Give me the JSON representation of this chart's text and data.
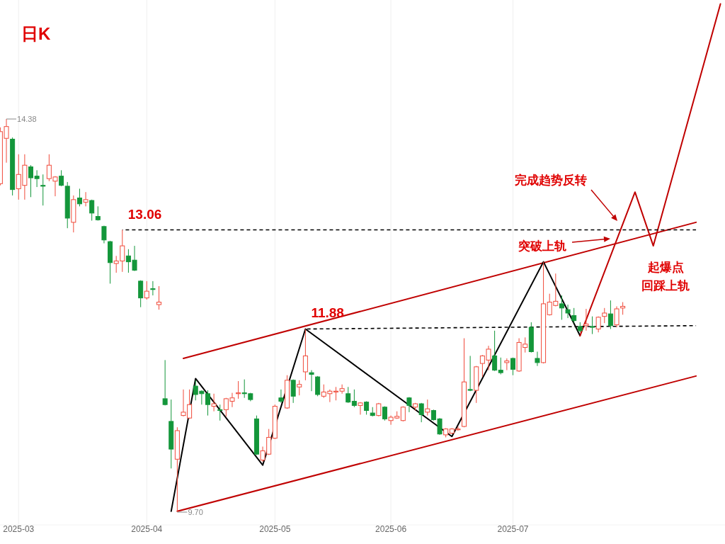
{
  "chart_data": {
    "type": "candlestick",
    "title": "日K",
    "categories": [
      null,
      null,
      null,
      "2025-03",
      null,
      null,
      null,
      null,
      null,
      null,
      null,
      null,
      null,
      null,
      null,
      null,
      null,
      null,
      null,
      null,
      null,
      null,
      null,
      null,
      "2025-04",
      null,
      null,
      null,
      null,
      null,
      null,
      null,
      null,
      null,
      null,
      null,
      null,
      null,
      null,
      null,
      null,
      null,
      null,
      null,
      null,
      "2025-05",
      null,
      null,
      null,
      null,
      null,
      null,
      null,
      null,
      null,
      null,
      null,
      null,
      null,
      null,
      null,
      null,
      null,
      null,
      "2025-06",
      null,
      null,
      null,
      null,
      null,
      null,
      null,
      null,
      null,
      null,
      null,
      null,
      null,
      null,
      null,
      null,
      null,
      null,
      null,
      "2025-07",
      null,
      null,
      null,
      null,
      null,
      null,
      null,
      null,
      null,
      null,
      null,
      null,
      null,
      null,
      null,
      null,
      null,
      null,
      null,
      null,
      null,
      null,
      null,
      null,
      null,
      null,
      null,
      null,
      null,
      null,
      null,
      null,
      null,
      null
    ],
    "ohlc": [
      [
        13.61,
        14.28,
        13.59,
        14.23
      ],
      [
        14.15,
        14.38,
        13.86,
        14.29
      ],
      [
        14.14,
        14.16,
        13.47,
        13.54
      ],
      [
        13.55,
        13.96,
        13.42,
        13.72
      ],
      [
        13.59,
        13.96,
        13.42,
        13.83
      ],
      [
        13.81,
        13.83,
        13.45,
        13.68
      ],
      [
        13.7,
        13.77,
        13.57,
        13.67
      ],
      [
        13.59,
        13.72,
        13.35,
        13.58
      ],
      [
        13.67,
        13.96,
        13.64,
        13.83
      ],
      [
        13.64,
        13.7,
        13.46,
        13.69
      ],
      [
        13.7,
        13.77,
        13.58,
        13.59
      ],
      [
        13.58,
        13.63,
        13.08,
        13.2
      ],
      [
        13.15,
        13.47,
        13.03,
        13.42
      ],
      [
        13.44,
        13.55,
        13.34,
        13.37
      ],
      [
        13.39,
        13.51,
        13.34,
        13.42
      ],
      [
        13.41,
        13.42,
        13.17,
        13.26
      ],
      [
        13.22,
        13.34,
        13.17,
        13.18
      ],
      [
        13.1,
        13.11,
        12.9,
        12.94
      ],
      [
        12.92,
        12.93,
        12.42,
        12.67
      ],
      [
        12.66,
        12.75,
        12.55,
        12.69
      ],
      [
        12.69,
        13.06,
        12.56,
        12.87
      ],
      [
        12.75,
        12.83,
        12.55,
        12.68
      ],
      [
        12.7,
        12.87,
        12.57,
        12.58
      ],
      [
        12.45,
        12.46,
        12.14,
        12.25
      ],
      [
        12.25,
        12.45,
        12.23,
        12.33
      ],
      [
        12.36,
        12.45,
        12.28,
        12.35
      ],
      [
        12.17,
        12.39,
        12.11,
        12.2
      ],
      [
        11.05,
        11.51,
        10.97,
        10.98
      ],
      [
        10.78,
        11.04,
        10.22,
        10.45
      ],
      [
        10.33,
        10.71,
        9.7,
        10.67
      ],
      [
        10.85,
        11.16,
        10.84,
        10.89
      ],
      [
        10.82,
        11.16,
        10.81,
        10.98
      ],
      [
        11.2,
        11.27,
        11.03,
        11.1
      ],
      [
        11.14,
        11.15,
        10.98,
        11.11
      ],
      [
        11.11,
        11.15,
        10.85,
        10.98
      ],
      [
        10.96,
        11.11,
        10.9,
        10.99
      ],
      [
        10.92,
        10.98,
        10.79,
        10.91
      ],
      [
        10.92,
        11.06,
        10.84,
        11.05
      ],
      [
        11.02,
        11.12,
        10.95,
        11.06
      ],
      [
        11.11,
        11.26,
        11.05,
        11.12
      ],
      [
        11.12,
        11.28,
        11.06,
        11.11
      ],
      [
        11.11,
        11.12,
        11.02,
        11.04
      ],
      [
        10.81,
        10.85,
        10.38,
        10.39
      ],
      [
        10.32,
        10.48,
        10.3,
        10.43
      ],
      [
        10.39,
        10.69,
        10.38,
        10.59
      ],
      [
        10.58,
        10.98,
        10.57,
        10.96
      ],
      [
        11.06,
        11.16,
        11.0,
        11.02
      ],
      [
        10.94,
        11.33,
        10.93,
        11.27
      ],
      [
        11.27,
        11.28,
        11.0,
        11.08
      ],
      [
        11.19,
        11.27,
        11.09,
        11.22
      ],
      [
        11.37,
        11.88,
        11.27,
        11.56
      ],
      [
        11.36,
        11.39,
        11.14,
        11.34
      ],
      [
        11.31,
        11.32,
        11.08,
        11.1
      ],
      [
        11.08,
        11.22,
        11.06,
        11.13
      ],
      [
        11.11,
        11.16,
        11.01,
        11.14
      ],
      [
        11.13,
        11.19,
        11.03,
        11.14
      ],
      [
        11.14,
        11.22,
        11.11,
        11.17
      ],
      [
        11.11,
        11.19,
        11.0,
        11.01
      ],
      [
        11.02,
        11.16,
        10.95,
        10.97
      ],
      [
        10.97,
        11.01,
        10.86,
        11.0
      ],
      [
        11.01,
        11.02,
        10.86,
        10.91
      ],
      [
        10.88,
        10.95,
        10.84,
        10.85
      ],
      [
        10.85,
        11.0,
        10.84,
        10.99
      ],
      [
        10.95,
        10.96,
        10.79,
        10.81
      ],
      [
        10.79,
        10.85,
        10.74,
        10.83
      ],
      [
        10.82,
        10.9,
        10.81,
        10.84
      ],
      [
        10.79,
        10.96,
        10.78,
        10.95
      ],
      [
        11.06,
        11.07,
        10.89,
        10.97
      ],
      [
        10.95,
        11.0,
        10.91,
        10.99
      ],
      [
        10.99,
        11.0,
        10.77,
        10.86
      ],
      [
        10.89,
        11.04,
        10.85,
        10.93
      ],
      [
        10.91,
        10.92,
        10.79,
        10.8
      ],
      [
        10.81,
        10.82,
        10.62,
        10.63
      ],
      [
        10.62,
        10.7,
        10.59,
        10.69
      ],
      [
        10.64,
        10.7,
        10.63,
        10.69
      ],
      [
        10.68,
        10.72,
        10.67,
        10.69
      ],
      [
        10.72,
        11.77,
        10.71,
        11.25
      ],
      [
        11.16,
        11.56,
        11.14,
        11.15
      ],
      [
        11.15,
        11.44,
        11.0,
        11.43
      ],
      [
        11.47,
        11.57,
        11.31,
        11.56
      ],
      [
        11.51,
        11.68,
        11.39,
        11.64
      ],
      [
        11.56,
        11.86,
        11.38,
        11.39
      ],
      [
        11.39,
        11.54,
        11.34,
        11.36
      ],
      [
        11.48,
        11.53,
        11.39,
        11.5
      ],
      [
        11.53,
        11.54,
        11.33,
        11.4
      ],
      [
        11.38,
        11.77,
        11.37,
        11.72
      ],
      [
        11.66,
        11.78,
        11.6,
        11.7
      ],
      [
        11.9,
        11.96,
        11.6,
        11.61
      ],
      [
        11.53,
        11.61,
        11.44,
        11.48
      ],
      [
        11.48,
        12.68,
        11.47,
        12.18
      ],
      [
        12.05,
        12.3,
        12.04,
        12.2
      ],
      [
        12.16,
        12.54,
        12.15,
        12.21
      ],
      [
        12.18,
        12.28,
        11.99,
        12.13
      ],
      [
        12.11,
        12.17,
        12.01,
        12.07
      ],
      [
        12.04,
        12.13,
        11.95,
        11.98
      ],
      [
        11.91,
        11.96,
        11.84,
        11.86
      ],
      [
        11.92,
        12.12,
        11.86,
        11.94
      ],
      [
        11.91,
        12.03,
        11.82,
        11.9
      ],
      [
        11.88,
        12.03,
        11.84,
        12.02
      ],
      [
        12.03,
        12.13,
        11.95,
        12.07
      ],
      [
        12.06,
        12.22,
        11.88,
        11.92
      ],
      [
        11.93,
        12.15,
        11.9,
        12.12
      ],
      [
        12.13,
        12.2,
        12.05,
        12.15
      ],
      null,
      null,
      null,
      null,
      null,
      null,
      null,
      null,
      null,
      null,
      null,
      null,
      null,
      null,
      null,
      null
    ],
    "series": [
      {
        "type": "line",
        "color": "#c00000",
        "line_style": "solid",
        "values": [
          null,
          null,
          null,
          null,
          null,
          null,
          null,
          null,
          null,
          null,
          null,
          null,
          null,
          null,
          null,
          null,
          null,
          null,
          null,
          null,
          null,
          null,
          null,
          null,
          null,
          null,
          null,
          null,
          null,
          null,
          11.53,
          null,
          null,
          null,
          null,
          null,
          null,
          null,
          null,
          null,
          null,
          null,
          null,
          null,
          null,
          null,
          null,
          null,
          null,
          null,
          null,
          null,
          null,
          null,
          null,
          null,
          null,
          null,
          null,
          null,
          null,
          null,
          null,
          null,
          null,
          null,
          null,
          null,
          null,
          null,
          null,
          null,
          null,
          null,
          null,
          null,
          null,
          null,
          null,
          null,
          null,
          null,
          null,
          null,
          null,
          null,
          null,
          null,
          null,
          null,
          null,
          null,
          null,
          null,
          null,
          null,
          null,
          null,
          null,
          null,
          null,
          null,
          null,
          null,
          null,
          null,
          null,
          null,
          null,
          null,
          null,
          null,
          null,
          null,
          13.15,
          null,
          null,
          null,
          null
        ]
      },
      {
        "type": "line",
        "color": "#c00000",
        "line_style": "solid",
        "values": [
          null,
          null,
          null,
          null,
          null,
          null,
          null,
          null,
          null,
          null,
          null,
          null,
          null,
          null,
          null,
          null,
          null,
          null,
          null,
          null,
          null,
          null,
          null,
          null,
          null,
          null,
          null,
          null,
          null,
          9.71,
          null,
          null,
          null,
          null,
          null,
          null,
          null,
          null,
          null,
          null,
          null,
          null,
          null,
          null,
          null,
          null,
          null,
          null,
          null,
          null,
          null,
          null,
          null,
          null,
          null,
          null,
          null,
          null,
          null,
          null,
          null,
          null,
          null,
          null,
          null,
          null,
          null,
          null,
          null,
          null,
          null,
          null,
          null,
          null,
          null,
          null,
          null,
          null,
          null,
          null,
          null,
          null,
          null,
          null,
          null,
          null,
          null,
          null,
          null,
          null,
          null,
          null,
          null,
          null,
          null,
          null,
          null,
          null,
          null,
          null,
          null,
          null,
          null,
          null,
          null,
          null,
          null,
          null,
          null,
          null,
          null,
          null,
          null,
          null,
          11.32,
          null,
          null,
          null,
          null
        ]
      },
      {
        "type": "line",
        "color": "#000000",
        "line_style": "solid",
        "values": [
          null,
          null,
          null,
          null,
          null,
          null,
          null,
          null,
          null,
          null,
          null,
          null,
          null,
          null,
          null,
          null,
          null,
          null,
          null,
          null,
          null,
          null,
          null,
          null,
          null,
          null,
          null,
          null,
          9.71,
          null,
          null,
          null,
          11.29,
          null,
          null,
          null,
          null,
          null,
          null,
          null,
          null,
          null,
          null,
          10.26,
          null,
          null,
          null,
          null,
          null,
          null,
          11.88,
          null,
          null,
          null,
          null,
          null,
          null,
          null,
          null,
          null,
          null,
          null,
          null,
          null,
          null,
          null,
          null,
          null,
          null,
          null,
          null,
          null,
          null,
          null,
          10.6,
          null,
          null,
          null,
          null,
          null,
          null,
          null,
          null,
          null,
          null,
          null,
          null,
          null,
          null,
          12.68,
          null,
          null,
          null,
          null,
          null,
          11.8,
          null,
          null,
          null,
          null,
          null,
          null,
          null,
          null,
          null,
          null,
          null,
          null,
          null,
          null,
          null,
          null,
          null,
          null,
          null,
          null,
          null,
          null,
          null
        ]
      },
      {
        "type": "line",
        "color": "#c00000",
        "line_style": "solid",
        "values": [
          null,
          null,
          null,
          null,
          null,
          null,
          null,
          null,
          null,
          null,
          null,
          null,
          null,
          null,
          null,
          null,
          null,
          null,
          null,
          null,
          null,
          null,
          null,
          null,
          null,
          null,
          null,
          null,
          null,
          null,
          null,
          null,
          null,
          null,
          null,
          null,
          null,
          null,
          null,
          null,
          null,
          null,
          null,
          null,
          null,
          null,
          null,
          null,
          null,
          null,
          null,
          null,
          null,
          null,
          null,
          null,
          null,
          null,
          null,
          null,
          null,
          null,
          null,
          null,
          null,
          null,
          null,
          null,
          null,
          null,
          null,
          null,
          null,
          null,
          null,
          null,
          null,
          null,
          null,
          null,
          null,
          null,
          null,
          null,
          null,
          null,
          null,
          null,
          null,
          null,
          null,
          null,
          null,
          null,
          null,
          11.8,
          null,
          null,
          null,
          null,
          null,
          null,
          null,
          null,
          13.51,
          null,
          null,
          12.87,
          null,
          null,
          null,
          null,
          null,
          null,
          null,
          null,
          null,
          null,
          15.75
        ]
      },
      {
        "type": "line",
        "color": "#000000",
        "line_style": "dashed",
        "values": [
          null,
          null,
          null,
          null,
          null,
          null,
          null,
          null,
          null,
          null,
          null,
          null,
          null,
          null,
          null,
          null,
          null,
          null,
          null,
          null,
          13.06,
          null,
          null,
          null,
          null,
          null,
          null,
          null,
          null,
          null,
          null,
          null,
          null,
          null,
          null,
          null,
          null,
          null,
          null,
          null,
          null,
          null,
          null,
          null,
          null,
          null,
          null,
          null,
          null,
          null,
          null,
          null,
          null,
          null,
          null,
          null,
          null,
          null,
          null,
          null,
          null,
          null,
          null,
          null,
          null,
          null,
          null,
          null,
          null,
          null,
          null,
          null,
          null,
          null,
          null,
          null,
          null,
          null,
          null,
          null,
          null,
          null,
          null,
          null,
          null,
          null,
          null,
          null,
          null,
          null,
          null,
          null,
          null,
          null,
          null,
          null,
          null,
          null,
          null,
          null,
          null,
          null,
          null,
          null,
          null,
          null,
          null,
          null,
          null,
          null,
          null,
          null,
          null,
          null,
          13.06,
          null,
          null,
          null,
          null
        ]
      },
      {
        "type": "line",
        "color": "#000000",
        "line_style": "dashed",
        "values": [
          null,
          null,
          null,
          null,
          null,
          null,
          null,
          null,
          null,
          null,
          null,
          null,
          null,
          null,
          null,
          null,
          null,
          null,
          null,
          null,
          null,
          null,
          null,
          null,
          null,
          null,
          null,
          null,
          null,
          null,
          null,
          null,
          null,
          null,
          null,
          null,
          null,
          null,
          null,
          null,
          null,
          null,
          null,
          null,
          null,
          null,
          null,
          null,
          null,
          null,
          11.88,
          null,
          null,
          null,
          null,
          null,
          null,
          null,
          null,
          null,
          null,
          null,
          null,
          null,
          null,
          null,
          null,
          null,
          null,
          null,
          null,
          null,
          null,
          null,
          null,
          null,
          null,
          null,
          null,
          null,
          null,
          null,
          null,
          null,
          null,
          null,
          null,
          null,
          null,
          null,
          null,
          null,
          null,
          null,
          null,
          null,
          null,
          null,
          null,
          null,
          null,
          null,
          null,
          null,
          null,
          null,
          null,
          null,
          null,
          null,
          null,
          null,
          null,
          null,
          11.92,
          null,
          null,
          null,
          null
        ]
      }
    ],
    "grid": "x",
    "tick_labels": "x",
    "annotations": [
      "14.38",
      "9.70",
      {
        "text": "13.06",
        "y": 13.06
      },
      {
        "text": "11.88",
        "y": 11.88
      },
      "完成趋势反转",
      "突破上轨",
      "起爆点",
      "回踩上轨"
    ]
  }
}
